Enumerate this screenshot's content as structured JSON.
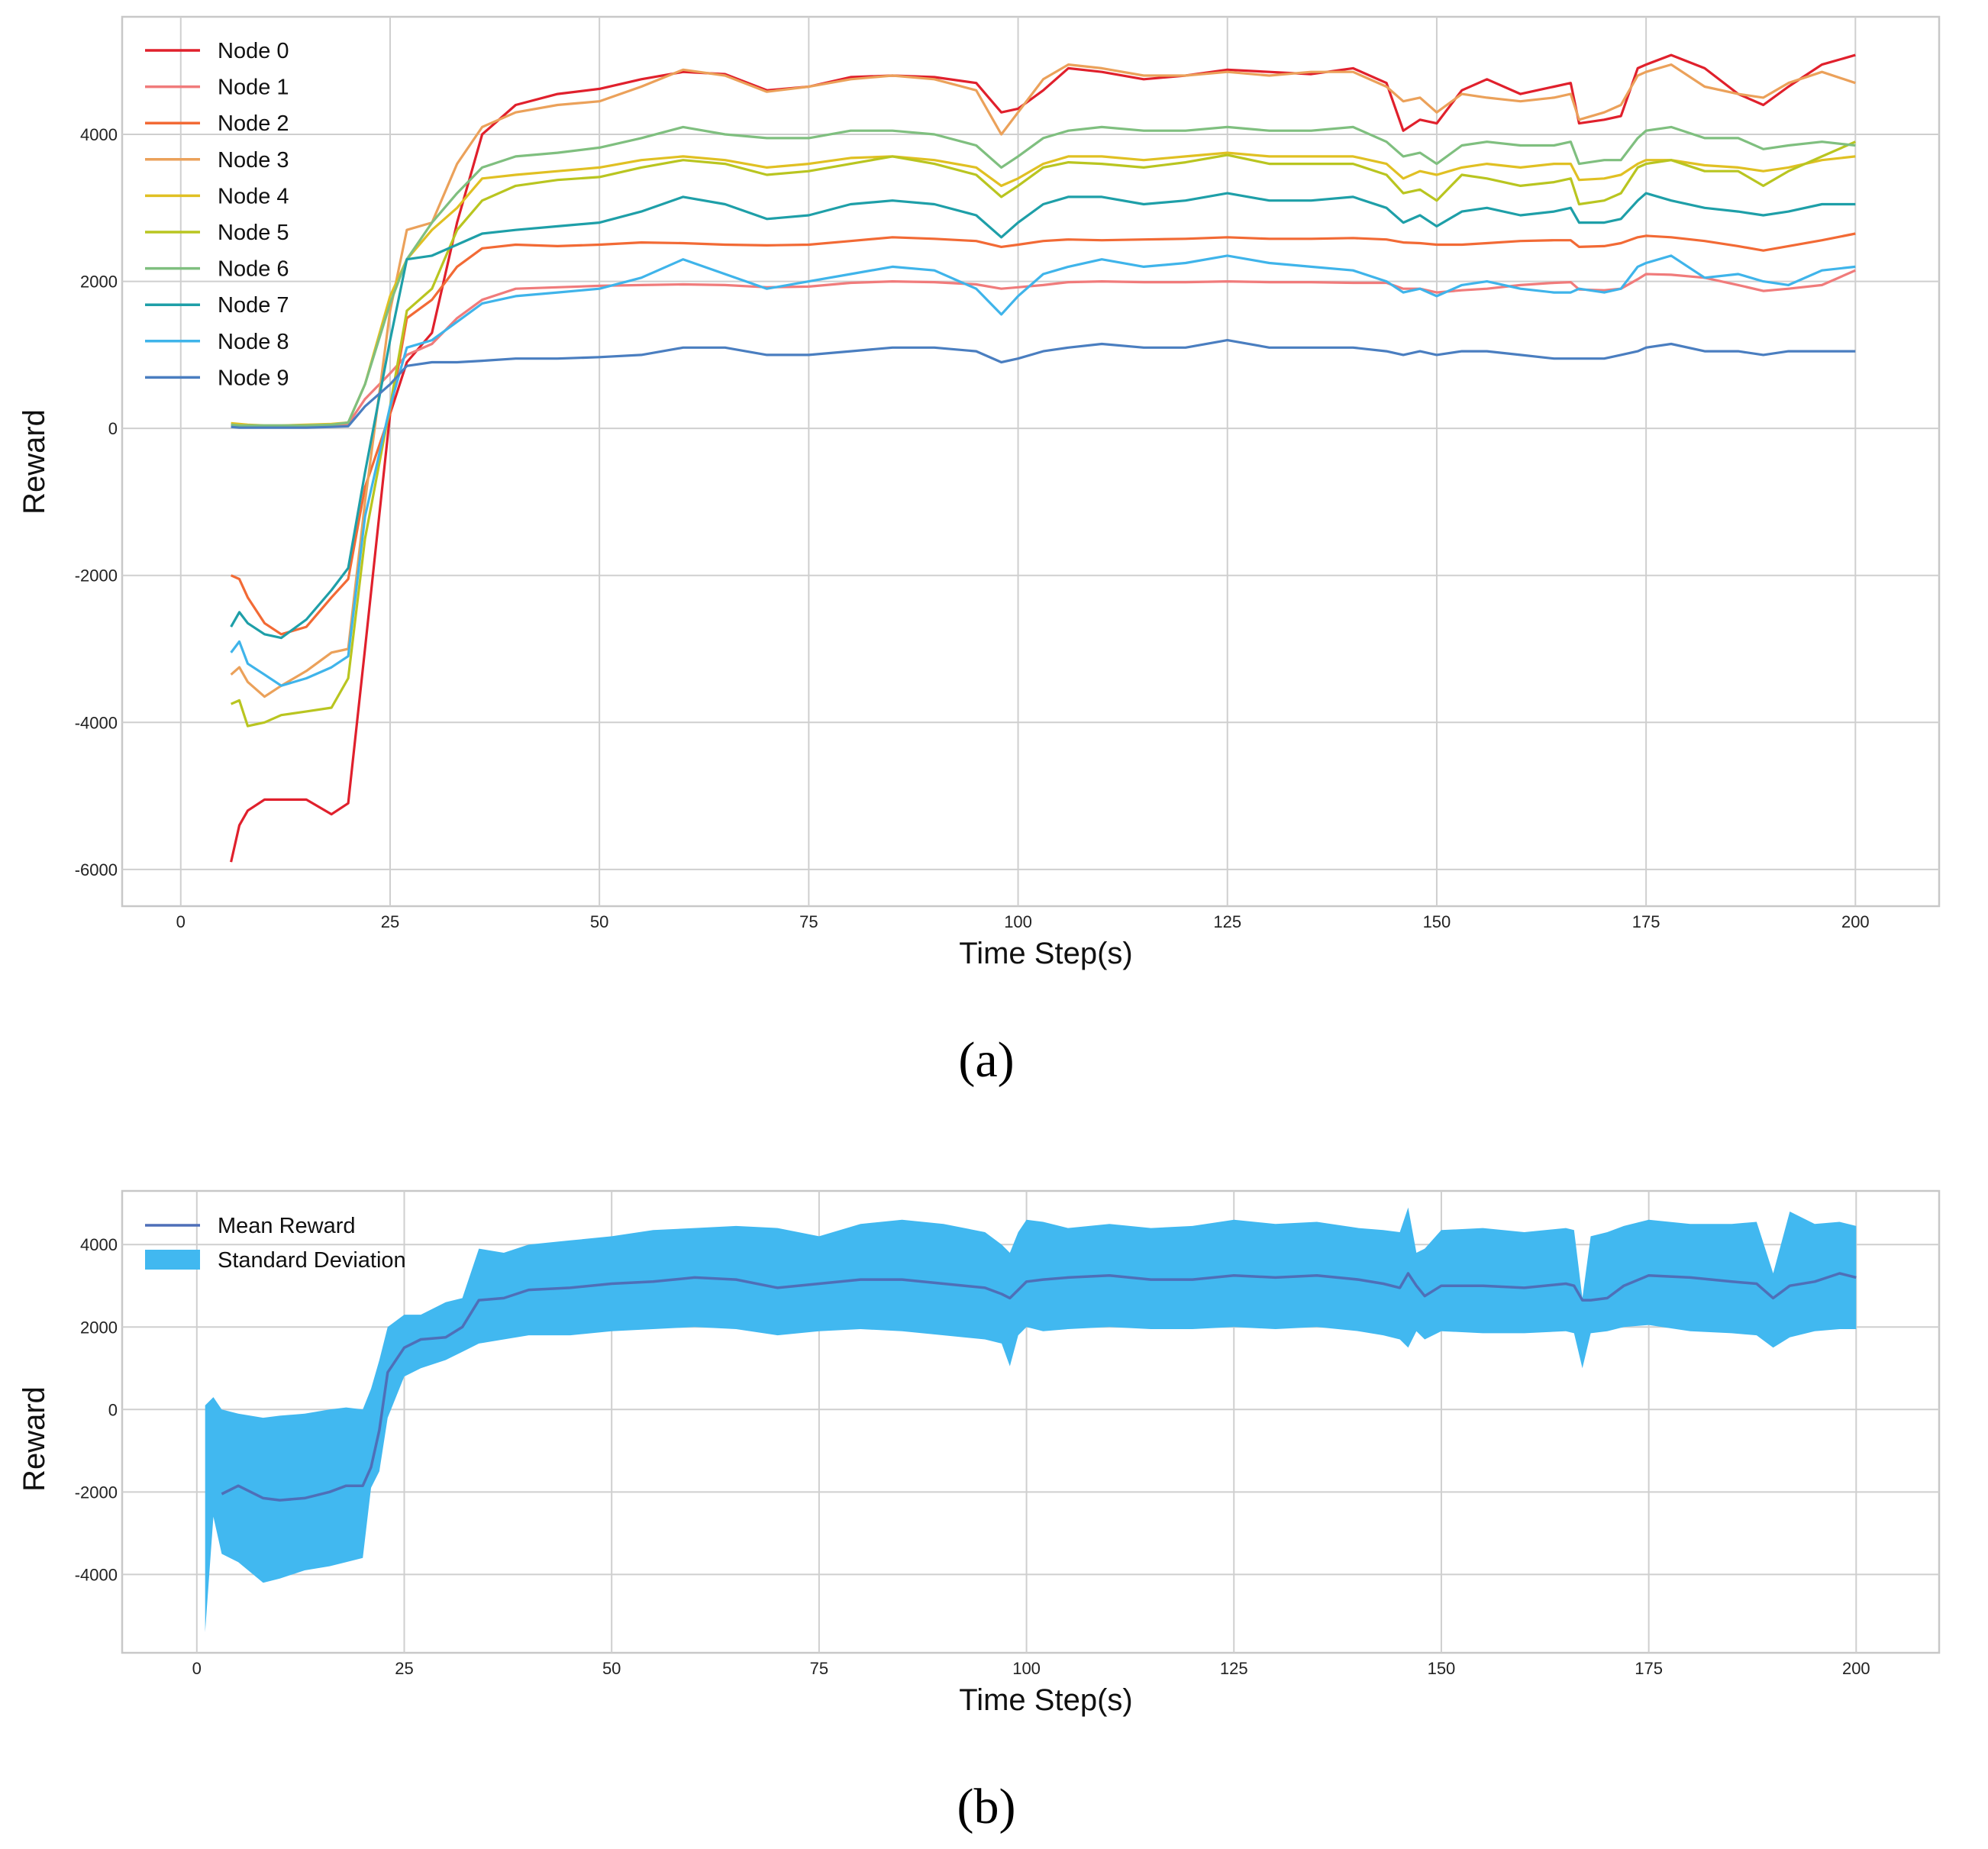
{
  "figure": {
    "caption_a": "(a)",
    "caption_b": "(b)"
  },
  "chart_data": [
    {
      "type": "line",
      "title": "",
      "xlabel": "Time Step(s)",
      "ylabel": "Reward",
      "xlim": [
        -7,
        210
      ],
      "ylim": [
        -6500,
        5600
      ],
      "xticks": [
        0,
        25,
        50,
        75,
        100,
        125,
        150,
        175,
        200
      ],
      "yticks": [
        -6000,
        -4000,
        -2000,
        0,
        2000,
        4000
      ],
      "grid": true,
      "legend_position": "top-left",
      "x_keypoints": [
        6,
        7,
        8,
        10,
        12,
        15,
        18,
        20,
        22,
        25,
        27,
        30,
        33,
        36,
        40,
        45,
        50,
        55,
        60,
        65,
        70,
        75,
        80,
        85,
        90,
        95,
        98,
        100,
        103,
        106,
        110,
        115,
        120,
        125,
        130,
        135,
        140,
        144,
        146,
        148,
        150,
        153,
        156,
        160,
        164,
        166,
        167,
        170,
        172,
        174,
        175,
        178,
        182,
        186,
        189,
        192,
        196,
        200
      ],
      "series": [
        {
          "name": "Node 0",
          "color": "#e0202c",
          "values": [
            -5900,
            -5400,
            -5200,
            -5050,
            -5050,
            -5050,
            -5250,
            -5100,
            -3000,
            200,
            900,
            1300,
            2800,
            4000,
            4400,
            4550,
            4620,
            4750,
            4850,
            4820,
            4600,
            4650,
            4780,
            4800,
            4780,
            4700,
            4300,
            4350,
            4600,
            4900,
            4850,
            4750,
            4800,
            4880,
            4850,
            4820,
            4900,
            4700,
            4050,
            4200,
            4150,
            4600,
            4750,
            4550,
            4650,
            4700,
            4150,
            4200,
            4250,
            4900,
            4950,
            5080,
            4900,
            4550,
            4400,
            4650,
            4950,
            5080
          ]
        },
        {
          "name": "Node 1",
          "color": "#f07b7b",
          "values": [
            40,
            30,
            30,
            30,
            30,
            30,
            40,
            60,
            400,
            750,
            1000,
            1150,
            1500,
            1750,
            1900,
            1920,
            1940,
            1950,
            1960,
            1950,
            1920,
            1930,
            1980,
            2000,
            1990,
            1960,
            1900,
            1920,
            1950,
            1990,
            2000,
            1990,
            1990,
            2000,
            1990,
            1990,
            1980,
            1980,
            1900,
            1900,
            1850,
            1880,
            1900,
            1950,
            1980,
            1990,
            1890,
            1880,
            1900,
            2030,
            2100,
            2090,
            2050,
            1950,
            1870,
            1900,
            1950,
            2150
          ]
        },
        {
          "name": "Node 2",
          "color": "#f26a35",
          "values": [
            -2000,
            -2050,
            -2300,
            -2650,
            -2800,
            -2700,
            -2300,
            -2050,
            -800,
            200,
            1500,
            1750,
            2200,
            2450,
            2500,
            2480,
            2500,
            2530,
            2520,
            2500,
            2490,
            2500,
            2550,
            2600,
            2580,
            2550,
            2470,
            2500,
            2550,
            2570,
            2560,
            2570,
            2580,
            2600,
            2580,
            2580,
            2590,
            2570,
            2530,
            2520,
            2500,
            2500,
            2520,
            2550,
            2560,
            2560,
            2470,
            2480,
            2520,
            2600,
            2620,
            2600,
            2550,
            2480,
            2420,
            2480,
            2560,
            2650
          ]
        },
        {
          "name": "Node 3",
          "color": "#eba15a",
          "values": [
            -3350,
            -3250,
            -3450,
            -3650,
            -3500,
            -3300,
            -3050,
            -3000,
            -1000,
            1600,
            2700,
            2800,
            3600,
            4100,
            4300,
            4400,
            4450,
            4650,
            4880,
            4800,
            4580,
            4650,
            4750,
            4800,
            4750,
            4600,
            4000,
            4300,
            4750,
            4950,
            4900,
            4800,
            4800,
            4850,
            4800,
            4850,
            4850,
            4650,
            4450,
            4500,
            4300,
            4550,
            4500,
            4450,
            4500,
            4550,
            4200,
            4300,
            4400,
            4800,
            4850,
            4950,
            4650,
            4550,
            4500,
            4700,
            4850,
            4700
          ]
        },
        {
          "name": "Node 4",
          "color": "#e0c023",
          "values": [
            70,
            60,
            50,
            40,
            40,
            50,
            60,
            80,
            600,
            1800,
            2300,
            2700,
            3000,
            3400,
            3450,
            3500,
            3550,
            3650,
            3700,
            3650,
            3550,
            3600,
            3680,
            3700,
            3650,
            3550,
            3300,
            3400,
            3600,
            3700,
            3700,
            3650,
            3700,
            3750,
            3700,
            3700,
            3700,
            3600,
            3400,
            3500,
            3450,
            3550,
            3600,
            3550,
            3600,
            3600,
            3380,
            3400,
            3450,
            3600,
            3650,
            3650,
            3580,
            3550,
            3500,
            3550,
            3650,
            3700
          ]
        },
        {
          "name": "Node 5",
          "color": "#b9c520",
          "values": [
            -3750,
            -3700,
            -4050,
            -4000,
            -3900,
            -3850,
            -3800,
            -3400,
            -1500,
            300,
            1600,
            1900,
            2700,
            3100,
            3300,
            3380,
            3420,
            3550,
            3650,
            3600,
            3450,
            3500,
            3600,
            3700,
            3600,
            3450,
            3150,
            3300,
            3550,
            3620,
            3600,
            3550,
            3620,
            3720,
            3600,
            3600,
            3600,
            3450,
            3200,
            3250,
            3100,
            3450,
            3400,
            3300,
            3350,
            3400,
            3050,
            3100,
            3200,
            3550,
            3600,
            3650,
            3500,
            3500,
            3300,
            3500,
            3700,
            3900
          ]
        },
        {
          "name": "Node 6",
          "color": "#7fbf7f",
          "values": [
            50,
            40,
            40,
            40,
            40,
            40,
            50,
            80,
            600,
            1700,
            2300,
            2800,
            3200,
            3550,
            3700,
            3750,
            3820,
            3950,
            4100,
            4000,
            3950,
            3950,
            4050,
            4050,
            4000,
            3850,
            3550,
            3700,
            3950,
            4050,
            4100,
            4050,
            4050,
            4100,
            4050,
            4050,
            4100,
            3900,
            3700,
            3750,
            3600,
            3850,
            3900,
            3850,
            3850,
            3900,
            3600,
            3650,
            3650,
            3950,
            4050,
            4100,
            3950,
            3950,
            3800,
            3850,
            3900,
            3850
          ]
        },
        {
          "name": "Node 7",
          "color": "#1e9fa8",
          "values": [
            -2700,
            -2500,
            -2650,
            -2800,
            -2850,
            -2600,
            -2200,
            -1900,
            -600,
            1200,
            2300,
            2350,
            2500,
            2650,
            2700,
            2750,
            2800,
            2950,
            3150,
            3050,
            2850,
            2900,
            3050,
            3100,
            3050,
            2900,
            2600,
            2800,
            3050,
            3150,
            3150,
            3050,
            3100,
            3200,
            3100,
            3100,
            3150,
            3000,
            2800,
            2900,
            2750,
            2950,
            3000,
            2900,
            2950,
            3000,
            2800,
            2800,
            2850,
            3100,
            3200,
            3100,
            3000,
            2950,
            2900,
            2950,
            3050,
            3050
          ]
        },
        {
          "name": "Node 8",
          "color": "#3fb4ea",
          "values": [
            -3050,
            -2900,
            -3200,
            -3350,
            -3500,
            -3400,
            -3250,
            -3100,
            -1200,
            300,
            1100,
            1200,
            1450,
            1700,
            1800,
            1850,
            1900,
            2050,
            2300,
            2100,
            1900,
            2000,
            2100,
            2200,
            2150,
            1900,
            1550,
            1800,
            2100,
            2200,
            2300,
            2200,
            2250,
            2350,
            2250,
            2200,
            2150,
            2000,
            1850,
            1900,
            1800,
            1950,
            2000,
            1900,
            1850,
            1850,
            1900,
            1850,
            1900,
            2200,
            2250,
            2350,
            2050,
            2100,
            2000,
            1950,
            2150,
            2200
          ]
        },
        {
          "name": "Node 9",
          "color": "#4a7ec0",
          "values": [
            20,
            10,
            10,
            10,
            10,
            10,
            20,
            30,
            300,
            600,
            850,
            900,
            900,
            920,
            950,
            950,
            970,
            1000,
            1100,
            1100,
            1000,
            1000,
            1050,
            1100,
            1100,
            1050,
            900,
            950,
            1050,
            1100,
            1150,
            1100,
            1100,
            1200,
            1100,
            1100,
            1100,
            1050,
            1000,
            1050,
            1000,
            1050,
            1050,
            1000,
            950,
            950,
            950,
            950,
            1000,
            1050,
            1100,
            1150,
            1050,
            1050,
            1000,
            1050,
            1050,
            1050
          ]
        }
      ]
    },
    {
      "type": "area",
      "title": "",
      "xlabel": "Time Step(s)",
      "ylabel": "Reward",
      "xlim": [
        -9,
        210
      ],
      "ylim": [
        -5900,
        5300
      ],
      "xticks": [
        0,
        25,
        50,
        75,
        100,
        125,
        150,
        175,
        200
      ],
      "yticks": [
        -4000,
        -2000,
        0,
        2000,
        4000
      ],
      "grid": true,
      "legend_position": "top-left",
      "x": [
        1,
        2,
        3,
        5,
        8,
        10,
        13,
        16,
        18,
        20,
        21,
        22,
        23,
        25,
        27,
        30,
        32,
        34,
        37,
        40,
        45,
        50,
        55,
        60,
        65,
        70,
        75,
        80,
        85,
        90,
        95,
        97,
        98,
        99,
        100,
        102,
        105,
        110,
        115,
        120,
        125,
        130,
        135,
        140,
        143,
        145,
        146,
        147,
        148,
        150,
        155,
        160,
        165,
        166,
        167,
        168,
        170,
        172,
        175,
        180,
        185,
        188,
        190,
        192,
        195,
        198,
        200
      ],
      "series": [
        {
          "name": "Mean Reward",
          "color": "#4e6fb8",
          "values": [
            null,
            null,
            -2050,
            -1850,
            -2150,
            -2200,
            -2150,
            -2000,
            -1850,
            -1850,
            -1400,
            -500,
            900,
            1500,
            1700,
            1750,
            2000,
            2650,
            2700,
            2900,
            2950,
            3050,
            3100,
            3200,
            3150,
            2950,
            3050,
            3150,
            3150,
            3050,
            2950,
            2800,
            2700,
            2900,
            3100,
            3150,
            3200,
            3250,
            3150,
            3150,
            3250,
            3200,
            3250,
            3150,
            3050,
            2950,
            3300,
            3000,
            2750,
            3000,
            3000,
            2950,
            3050,
            3000,
            2650,
            2650,
            2700,
            3000,
            3250,
            3200,
            3100,
            3050,
            2700,
            3000,
            3100,
            3300,
            3200
          ]
        },
        {
          "name": "Standard Deviation",
          "color": "#41b8f0",
          "upper": [
            100,
            300,
            0,
            -100,
            -200,
            -150,
            -100,
            0,
            50,
            0,
            500,
            1200,
            2000,
            2300,
            2300,
            2600,
            2700,
            3900,
            3800,
            4000,
            4100,
            4200,
            4350,
            4400,
            4450,
            4400,
            4200,
            4500,
            4600,
            4500,
            4300,
            4000,
            3800,
            4300,
            4600,
            4550,
            4400,
            4500,
            4400,
            4450,
            4600,
            4500,
            4550,
            4400,
            4350,
            4300,
            4900,
            3800,
            3900,
            4350,
            4400,
            4300,
            4400,
            4350,
            2700,
            4200,
            4300,
            4450,
            4600,
            4500,
            4500,
            4550,
            3300,
            4800,
            4500,
            4550,
            4450
          ],
          "lower": [
            -5400,
            -2600,
            -3500,
            -3700,
            -4200,
            -4100,
            -3900,
            -3800,
            -3700,
            -3600,
            -1900,
            -1500,
            -200,
            800,
            1000,
            1200,
            1400,
            1600,
            1700,
            1800,
            1800,
            1900,
            1950,
            2000,
            1950,
            1800,
            1900,
            1950,
            1900,
            1800,
            1700,
            1600,
            1050,
            1800,
            2000,
            1900,
            1950,
            2000,
            1950,
            1950,
            2000,
            1950,
            2000,
            1900,
            1800,
            1700,
            1500,
            1900,
            1700,
            1900,
            1850,
            1850,
            1900,
            1850,
            1000,
            1850,
            1900,
            2000,
            2050,
            1900,
            1850,
            1800,
            1500,
            1750,
            1900,
            1950,
            1950
          ]
        }
      ]
    }
  ]
}
